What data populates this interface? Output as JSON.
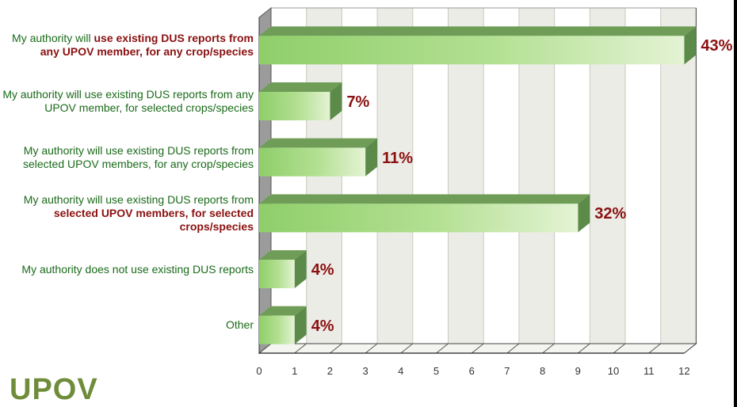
{
  "chart_data": {
    "type": "bar",
    "orientation": "horizontal",
    "title": "",
    "xlabel": "",
    "ylabel": "",
    "xlim": [
      0,
      12
    ],
    "ticks": [
      "0",
      "1",
      "2",
      "3",
      "4",
      "5",
      "6",
      "7",
      "8",
      "9",
      "10",
      "11",
      "12"
    ],
    "grid": true,
    "categories": [
      {
        "parts": [
          {
            "text": "My authority will ",
            "bold": false
          },
          {
            "text": "use existing DUS reports from any UPOV member, for any crop/species",
            "bold": true
          }
        ]
      },
      {
        "parts": [
          {
            "text": "My authority will use existing DUS reports from any UPOV member, for selected crops/species",
            "bold": false
          }
        ]
      },
      {
        "parts": [
          {
            "text": "My authority will use existing DUS reports from selected UPOV members, for any crop/species",
            "bold": false
          }
        ]
      },
      {
        "parts": [
          {
            "text": "My authority will use existing DUS reports from ",
            "bold": false
          },
          {
            "text": "selected UPOV members, for selected crops/species",
            "bold": true
          }
        ]
      },
      {
        "parts": [
          {
            "text": "My authority does not use existing DUS reports",
            "bold": false
          }
        ]
      },
      {
        "parts": [
          {
            "text": "Other",
            "bold": false
          }
        ]
      }
    ],
    "values": [
      12,
      2,
      3,
      9,
      1,
      1
    ],
    "percent_labels": [
      "43%",
      "7%",
      "11%",
      "32%",
      "4%",
      "4%"
    ],
    "colors": {
      "bar_light": "#e4f3d4",
      "bar_mid": "#b3e092",
      "bar_dark": "#8fce6a",
      "bar_top": "#6f9d58",
      "bar_side": "#5c8a48",
      "label_green": "#1a6a1a",
      "label_red": "#8b1010",
      "grid_band": "#ecece6"
    }
  },
  "logo": {
    "text": "UPOV"
  }
}
